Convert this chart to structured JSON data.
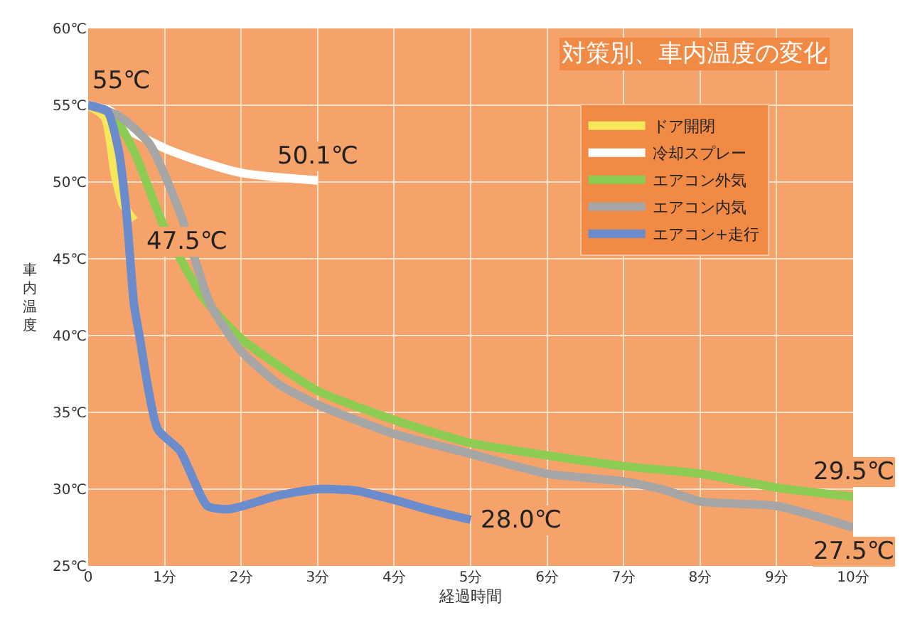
{
  "chart_data": {
    "type": "line",
    "title": "対策別、車内温度の変化",
    "xlabel": "経過時間",
    "ylabel": "車内温度",
    "xlim": [
      0,
      10
    ],
    "ylim": [
      25,
      60
    ],
    "xticks": [
      0,
      {
        "value": 1,
        "label": "1分"
      },
      {
        "value": 2,
        "label": "2分"
      },
      {
        "value": 3,
        "label": "3分"
      },
      {
        "value": 4,
        "label": "4分"
      },
      {
        "value": 5,
        "label": "5分"
      },
      {
        "value": 6,
        "label": "6分"
      },
      {
        "value": 7,
        "label": "7分"
      },
      {
        "value": 8,
        "label": "8分"
      },
      {
        "value": 9,
        "label": "9分"
      },
      {
        "value": 10,
        "label": "10分"
      }
    ],
    "yticks": [
      {
        "value": 25,
        "label": "25℃"
      },
      {
        "value": 30,
        "label": "30℃"
      },
      {
        "value": 35,
        "label": "35℃"
      },
      {
        "value": 40,
        "label": "40℃"
      },
      {
        "value": 45,
        "label": "45℃"
      },
      {
        "value": 50,
        "label": "50℃"
      },
      {
        "value": 55,
        "label": "55℃"
      },
      {
        "value": 60,
        "label": "60℃"
      }
    ],
    "grid": true,
    "legend": "top right",
    "line_style": "solid",
    "series": [
      {
        "name": "ドア開閉",
        "color": "#f5e85a",
        "x": [
          0,
          0.22,
          0.35,
          0.45,
          0.6
        ],
        "values": [
          55,
          54.2,
          50.5,
          48.6,
          47.5
        ]
      },
      {
        "name": "冷却スプレー",
        "color": "#ffffff",
        "x": [
          0,
          0.3,
          0.5,
          1,
          1.5,
          2,
          2.5,
          3
        ],
        "values": [
          55,
          54.6,
          53.5,
          52.2,
          51.3,
          50.6,
          50.3,
          50.1
        ]
      },
      {
        "name": "エアコン外気",
        "color": "#8dcc52",
        "x": [
          0,
          0.3,
          0.6,
          1,
          1.5,
          2,
          2.5,
          3,
          4,
          5,
          6,
          7,
          8,
          9,
          10
        ],
        "values": [
          55,
          54.5,
          52,
          47,
          42.5,
          39.8,
          38,
          36.4,
          34.5,
          33,
          32.2,
          31.5,
          31,
          30.1,
          29.5
        ]
      },
      {
        "name": "エアコン内気",
        "color": "#a6a6a6",
        "x": [
          0,
          0.4,
          0.8,
          1.2,
          1.6,
          2,
          2.5,
          3,
          4,
          5,
          6,
          7,
          7.5,
          8,
          9,
          10
        ],
        "values": [
          55,
          54.3,
          52.5,
          48,
          42,
          39,
          36.8,
          35.5,
          33.6,
          32.3,
          31,
          30.5,
          30,
          29.2,
          28.9,
          27.5
        ]
      },
      {
        "name": "エアコン+走行",
        "color": "#6b8ccc",
        "x": [
          0,
          0.25,
          0.4,
          0.5,
          0.6,
          0.67,
          0.91,
          1.2,
          1.56,
          1.84,
          2.5,
          3,
          3.5,
          4,
          4.5,
          5
        ],
        "values": [
          55,
          54.6,
          52,
          48,
          42,
          40,
          33.9,
          32.5,
          28.9,
          28.7,
          29.6,
          30,
          29.9,
          29.3,
          28.6,
          28
        ]
      }
    ],
    "annotations": [
      {
        "text": "55℃",
        "x": 0,
        "y": 55
      },
      {
        "text": "47.5℃",
        "x": 0.6,
        "y": 47.5
      },
      {
        "text": "50.1℃",
        "x": 3,
        "y": 50.1
      },
      {
        "text": "28.0℃",
        "x": 5,
        "y": 28
      },
      {
        "text": "29.5℃",
        "x": 10,
        "y": 29.5
      },
      {
        "text": "27.5℃",
        "x": 10,
        "y": 27.5
      }
    ]
  }
}
